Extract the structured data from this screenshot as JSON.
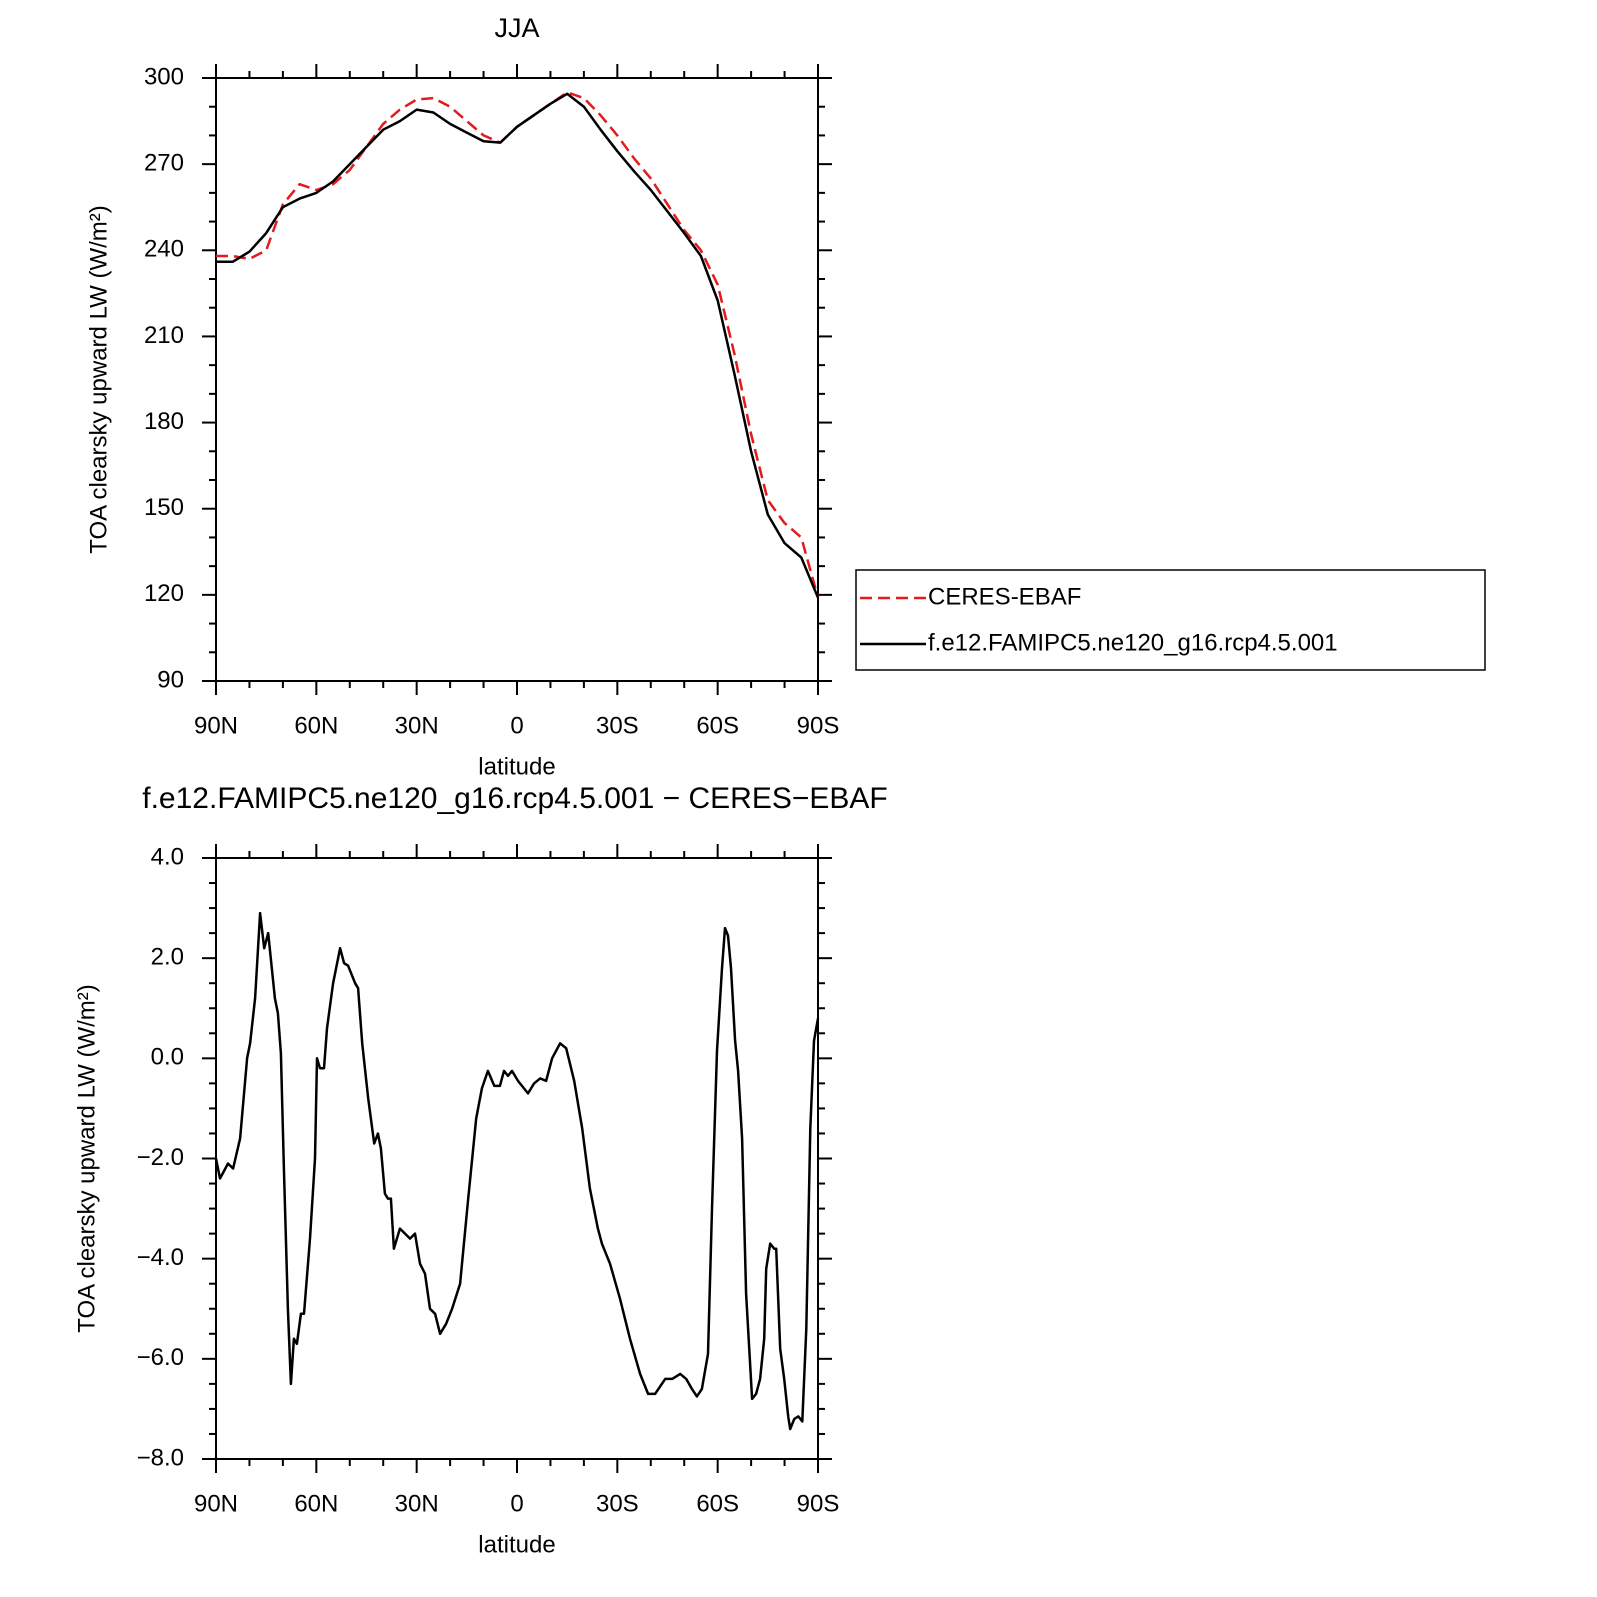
{
  "chart_data": [
    {
      "type": "line",
      "title": "JJA",
      "xlabel": "latitude",
      "ylabel": "TOA clearsky upward LW (W/m²)",
      "x": [
        90,
        85,
        80,
        75,
        70,
        65,
        60,
        55,
        50,
        45,
        40,
        35,
        30,
        25,
        20,
        15,
        10,
        5,
        0,
        -5,
        -10,
        -15,
        -20,
        -25,
        -30,
        -35,
        -40,
        -45,
        -50,
        -55,
        -60,
        -65,
        -70,
        -75,
        -80,
        -85,
        -90
      ],
      "series": [
        {
          "name": "CERES-EBAF",
          "color": "#e41a1c",
          "style": "dashed",
          "values": [
            238,
            238,
            237,
            240,
            256,
            263,
            261,
            263,
            268,
            276,
            284,
            289,
            292.5,
            293,
            290,
            285,
            280,
            277.5,
            283,
            287,
            291,
            295,
            293,
            287,
            280,
            272,
            265,
            256,
            247,
            240,
            228,
            204,
            176,
            153,
            145,
            140,
            119
          ]
        },
        {
          "name": "f.e12.FAMIPC5.ne120_g16.rcp4.5.001",
          "color": "#000000",
          "style": "solid",
          "values": [
            236,
            236,
            239.5,
            246,
            255,
            258,
            260,
            264,
            270,
            276,
            282,
            285,
            289,
            288,
            284,
            281,
            278,
            277.5,
            283,
            287,
            291,
            294.5,
            290,
            282,
            274.5,
            267.5,
            261,
            253.5,
            246,
            238,
            222.5,
            197,
            170,
            148,
            138,
            133,
            119
          ]
        }
      ],
      "xlim": [
        90,
        -90
      ],
      "xticks": [
        {
          "value": 90,
          "label": "90N"
        },
        {
          "value": 60,
          "label": "60N"
        },
        {
          "value": 30,
          "label": "30N"
        },
        0,
        {
          "value": -30,
          "label": "30S"
        },
        {
          "value": -60,
          "label": "60S"
        },
        {
          "value": -90,
          "label": "90S"
        }
      ],
      "xminorticks": [
        80,
        70,
        50,
        40,
        20,
        10,
        -10,
        -20,
        -40,
        -50,
        -70,
        -80
      ],
      "ylim": [
        90,
        300
      ],
      "yticks": [
        90,
        120,
        150,
        180,
        210,
        240,
        270,
        300
      ],
      "yminorticks": [
        100,
        110,
        130,
        140,
        160,
        170,
        190,
        200,
        220,
        230,
        250,
        260,
        280,
        290
      ],
      "legend": "right"
    },
    {
      "type": "line",
      "title": "f.e12.FAMIPC5.ne120_g16.rcp4.5.001 − CERES−EBAF",
      "xlabel": "latitude",
      "ylabel": "TOA clearsky upward LW (W/m²)",
      "x": [
        90,
        88.8,
        86.4,
        84.9,
        82.8,
        80.7,
        79.8,
        78.3,
        76.8,
        75.6,
        74.4,
        72.4,
        71.5,
        70.6,
        69.7,
        68.5,
        67.6,
        66.7,
        65.8,
        64.6,
        63.7,
        61.9,
        60.4,
        59.8,
        58.9,
        57.7,
        56.8,
        55,
        52.9,
        51.7,
        50.5,
        48.4,
        47.5,
        46.3,
        44.5,
        42.7,
        41.6,
        40.7,
        39.5,
        38.6,
        37.7,
        36.8,
        35,
        33.5,
        32,
        30.5,
        29,
        27.5,
        26,
        24.5,
        23,
        21.2,
        19.4,
        17,
        14.6,
        12.2,
        10.5,
        8.7,
        6.8,
        5.1,
        3.9,
        2.7,
        1.5,
        -0.3,
        -3.3,
        -5.1,
        -6.9,
        -8.7,
        -10.5,
        -12.9,
        -14.7,
        -17.1,
        -19.5,
        -21.8,
        -24.2,
        -25.4,
        -27.8,
        -30.8,
        -32.3,
        -33.8,
        -36.8,
        -39.2,
        -41.3,
        -44.3,
        -46.4,
        -48.8,
        -50.6,
        -52.3,
        -53.8,
        -55.3,
        -57.1,
        -58.3,
        -59.8,
        -61.3,
        -62.2,
        -63.1,
        -64,
        -65.2,
        -66.1,
        -67.3,
        -68.5,
        -70.3,
        -71.5,
        -72.7,
        -73.9,
        -74.5,
        -75.7,
        -76.9,
        -77.5,
        -78.7,
        -79.9,
        -81.1,
        -81.7,
        -82.9,
        -84.1,
        -85.3,
        -86.5,
        -87.7,
        -88.8,
        -90
      ],
      "values": [
        -2.0,
        -2.4,
        -2.1,
        -2.2,
        -1.6,
        0.0,
        0.3,
        1.2,
        2.9,
        2.2,
        2.5,
        1.2,
        0.9,
        0.1,
        -2.2,
        -5.0,
        -6.5,
        -5.6,
        -5.7,
        -5.1,
        -5.1,
        -3.6,
        -2.0,
        0.0,
        -0.2,
        -0.2,
        0.6,
        1.5,
        2.2,
        1.9,
        1.85,
        1.5,
        1.4,
        0.3,
        -0.8,
        -1.7,
        -1.5,
        -1.8,
        -2.7,
        -2.8,
        -2.8,
        -3.8,
        -3.4,
        -3.5,
        -3.6,
        -3.5,
        -4.1,
        -4.3,
        -5.0,
        -5.1,
        -5.5,
        -5.3,
        -5.0,
        -4.5,
        -2.8,
        -1.2,
        -0.6,
        -0.25,
        -0.55,
        -0.55,
        -0.25,
        -0.35,
        -0.25,
        -0.45,
        -0.7,
        -0.5,
        -0.4,
        -0.45,
        0.0,
        0.3,
        0.2,
        -0.45,
        -1.4,
        -2.6,
        -3.4,
        -3.7,
        -4.1,
        -4.8,
        -5.2,
        -5.6,
        -6.3,
        -6.7,
        -6.7,
        -6.4,
        -6.4,
        -6.3,
        -6.4,
        -6.6,
        -6.75,
        -6.6,
        -5.9,
        -3.0,
        0.15,
        1.8,
        2.6,
        2.45,
        1.8,
        0.35,
        -0.25,
        -1.6,
        -4.7,
        -6.8,
        -6.7,
        -6.4,
        -5.6,
        -4.2,
        -3.7,
        -3.8,
        -3.8,
        -5.8,
        -6.4,
        -7.15,
        -7.4,
        -7.2,
        -7.15,
        -7.25,
        -5.4,
        -1.4,
        0.35,
        0.8
      ],
      "color": "#000000",
      "xlim": [
        90,
        -90
      ],
      "xticks": [
        {
          "value": 90,
          "label": "90N"
        },
        {
          "value": 60,
          "label": "60N"
        },
        {
          "value": 30,
          "label": "30N"
        },
        0,
        {
          "value": -30,
          "label": "30S"
        },
        {
          "value": -60,
          "label": "60S"
        },
        {
          "value": -90,
          "label": "90S"
        }
      ],
      "xminorticks": [
        80,
        70,
        50,
        40,
        20,
        10,
        -10,
        -20,
        -40,
        -50,
        -70,
        -80
      ],
      "ylim": [
        -8,
        4
      ],
      "yticks": [
        {
          "value": -8,
          "label": "−8.0"
        },
        {
          "value": -6,
          "label": "−6.0"
        },
        {
          "value": -4,
          "label": "−4.0"
        },
        {
          "value": -2,
          "label": "−2.0"
        },
        {
          "value": 0,
          "label": "0.0"
        },
        {
          "value": 2,
          "label": "2.0"
        },
        {
          "value": 4,
          "label": "4.0"
        }
      ],
      "yminorticks": [
        -7.5,
        -7,
        -6.5,
        -5.5,
        -5,
        -4.5,
        -3.5,
        -3,
        -2.5,
        -1.5,
        -1,
        -0.5,
        0.5,
        1,
        1.5,
        2.5,
        3,
        3.5
      ]
    }
  ]
}
